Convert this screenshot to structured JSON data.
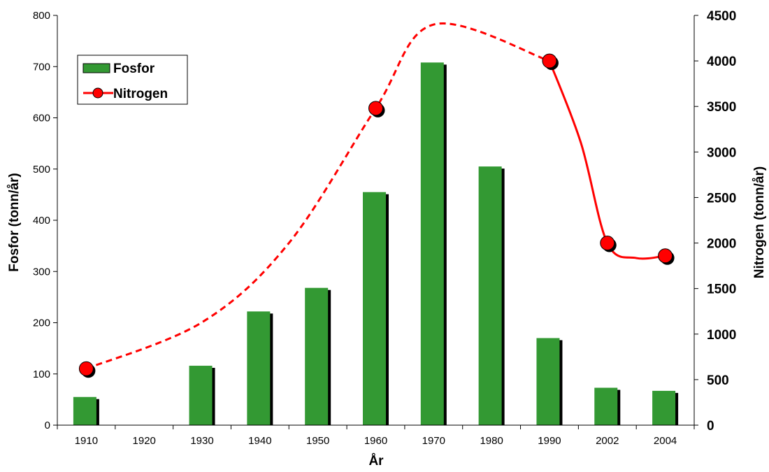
{
  "chart_data": {
    "type": "bar+line",
    "categories": [
      "1910",
      "1920",
      "1930",
      "1940",
      "1950",
      "1960",
      "1970",
      "1980",
      "1990",
      "2002",
      "2004"
    ],
    "series": [
      {
        "name": "Fosfor",
        "type": "bar",
        "axis": "left",
        "color": "#339933",
        "values": [
          55,
          null,
          116,
          222,
          268,
          455,
          708,
          505,
          170,
          73,
          67
        ]
      },
      {
        "name": "Nitrogen",
        "type": "line",
        "axis": "right",
        "color": "#ff0000",
        "values": [
          620,
          null,
          null,
          null,
          null,
          3480,
          null,
          null,
          4000,
          2000,
          1860
        ],
        "dashed_interpolation": [
          [
            1910,
            620
          ],
          [
            1930,
            1130
          ],
          [
            1945,
            2000
          ],
          [
            1960,
            3480
          ],
          [
            1970,
            4400
          ],
          [
            1990,
            4000
          ]
        ]
      }
    ],
    "xlabel": "År",
    "ylabel_left": "Fosfor (tonn/år)",
    "ylabel_right": "Nitrogen (tonn/år)",
    "ylim_left": [
      0,
      800
    ],
    "ylim_right": [
      0,
      4500
    ],
    "yticks_left": [
      "0",
      "100",
      "200",
      "300",
      "400",
      "500",
      "600",
      "700",
      "800"
    ],
    "yticks_right": [
      "0",
      "500",
      "1000",
      "1500",
      "2000",
      "2500",
      "3000",
      "3500",
      "4000",
      "4500"
    ],
    "grid": false,
    "legend_position": "top-left"
  }
}
